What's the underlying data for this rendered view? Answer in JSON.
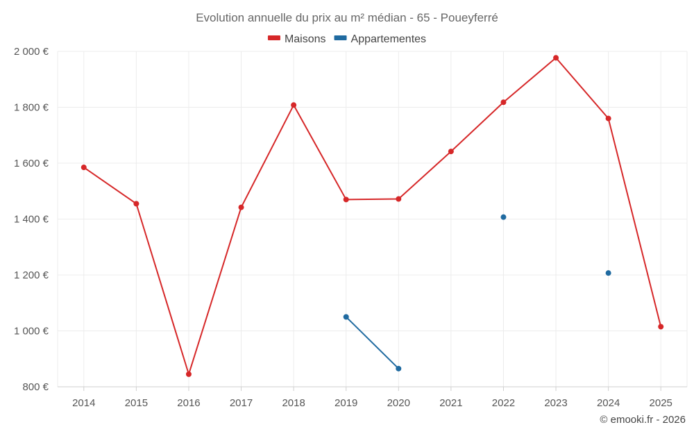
{
  "chart_data": {
    "type": "line",
    "title": "Evolution annuelle du prix au m² médian - 65 - Poueyferré",
    "categories": [
      "2014",
      "2015",
      "2016",
      "2017",
      "2018",
      "2019",
      "2020",
      "2021",
      "2022",
      "2023",
      "2024",
      "2025"
    ],
    "series": [
      {
        "name": "Maisons",
        "color": "#d62728",
        "values": [
          1585,
          1455,
          845,
          1442,
          1808,
          1470,
          1472,
          1642,
          1818,
          1977,
          1760,
          1015
        ]
      },
      {
        "name": "Appartementes",
        "color": "#1f6aa0",
        "values": [
          null,
          null,
          null,
          null,
          null,
          1050,
          865,
          null,
          1407,
          null,
          1207,
          null
        ]
      }
    ],
    "ylim": [
      800,
      2000
    ],
    "yticks": [
      800,
      1000,
      1200,
      1400,
      1600,
      1800,
      2000
    ],
    "ytick_labels": [
      "800 €",
      "1 000 €",
      "1 200 €",
      "1 400 €",
      "1 600 €",
      "1 800 €",
      "2 000 €"
    ],
    "grid": true,
    "legend_position": "top-center",
    "xlabel": "",
    "ylabel": ""
  },
  "credit": "© emooki.fr - 2026"
}
